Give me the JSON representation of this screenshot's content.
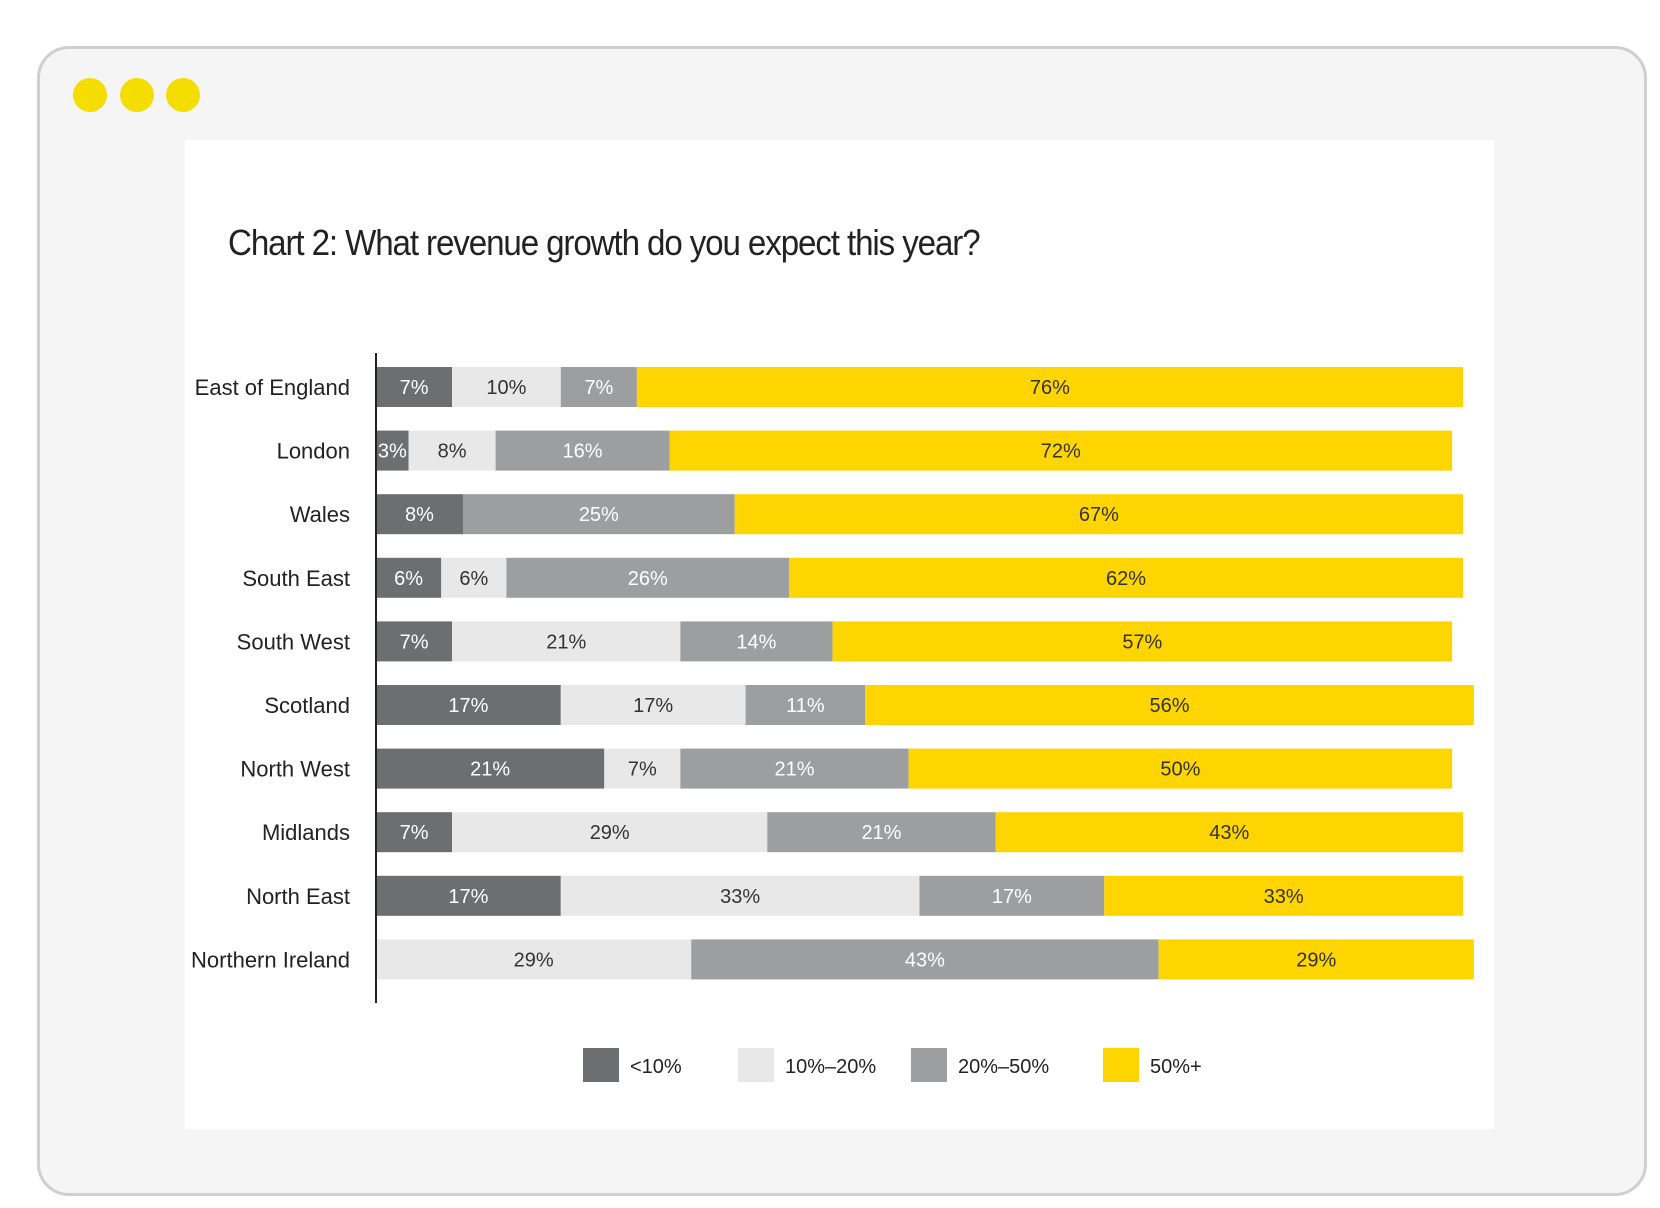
{
  "window": {
    "controls": [
      "dot-icon",
      "dot-icon",
      "dot-icon"
    ],
    "accent_color": "#F5DD00",
    "frame_color": "#CFCFCF"
  },
  "chart_data": {
    "type": "bar",
    "orientation": "horizontal",
    "stacked": true,
    "title": "Chart 2: What revenue growth do you expect this year?",
    "categories": [
      "East of England",
      "London",
      "Wales",
      "South East",
      "South West",
      "Scotland",
      "North West",
      "Midlands",
      "North East",
      "Northern Ireland"
    ],
    "series": [
      {
        "name": "<10%",
        "color": "#6D6E70",
        "label_color": "#FFFFFF",
        "values": [
          7,
          3,
          8,
          6,
          7,
          17,
          21,
          7,
          17,
          0
        ]
      },
      {
        "name": "10%–20%",
        "color": "#E8E8E8",
        "label_color": "#333333",
        "values": [
          10,
          8,
          0,
          6,
          21,
          17,
          7,
          29,
          33,
          29
        ]
      },
      {
        "name": "20%–50%",
        "color": "#9D9EA0",
        "label_color": "#FFFFFF",
        "values": [
          7,
          16,
          25,
          26,
          14,
          11,
          21,
          21,
          17,
          43
        ]
      },
      {
        "name": "50%+",
        "color": "#FFD500",
        "label_color": "#333333",
        "values": [
          76,
          72,
          67,
          62,
          57,
          56,
          50,
          43,
          33,
          29
        ]
      }
    ],
    "data_labels": [
      [
        "7%",
        "10%",
        "7%",
        "76%"
      ],
      [
        "3%",
        "8%",
        "16%",
        "72%"
      ],
      [
        "8%",
        "",
        "25%",
        "67%"
      ],
      [
        "6%",
        "6%",
        "26%",
        "62%"
      ],
      [
        "7%",
        "21%",
        "14%",
        "57%"
      ],
      [
        "17%",
        "17%",
        "11%",
        "56%"
      ],
      [
        "21%",
        "7%",
        "21%",
        "50%"
      ],
      [
        "7%",
        "29%",
        "21%",
        "43%"
      ],
      [
        "17%",
        "33%",
        "17%",
        "33%"
      ],
      [
        "",
        "29%",
        "43%",
        "29%"
      ]
    ],
    "xlim": [
      0,
      100
    ],
    "grid": false,
    "legend_position": "bottom-center"
  }
}
